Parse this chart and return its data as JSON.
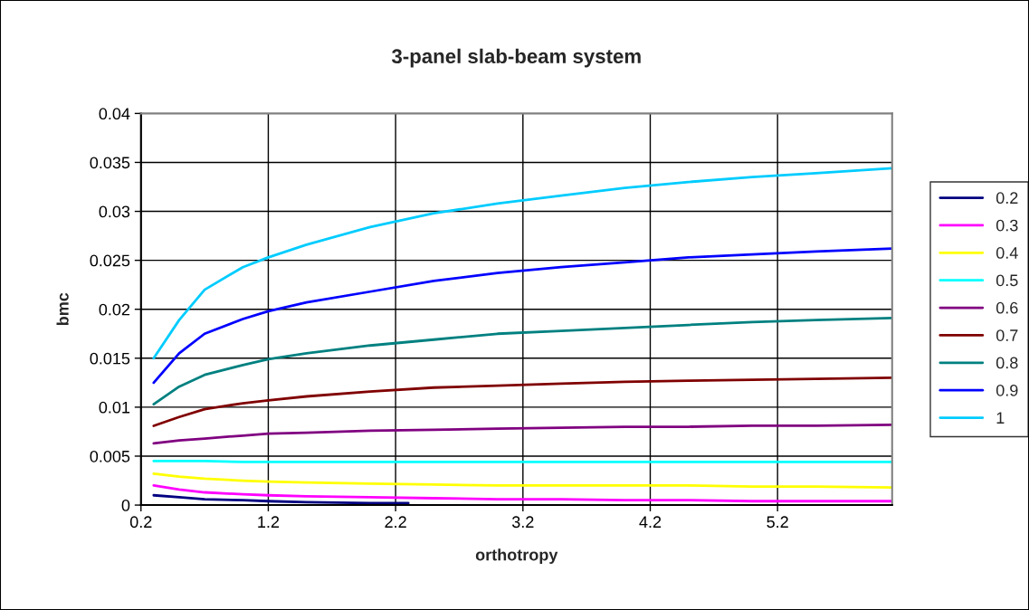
{
  "chart_data": {
    "type": "line",
    "title": "3-panel slab-beam system",
    "xlabel": "orthotropy",
    "ylabel": "bmc",
    "x": [
      0.3,
      0.5,
      0.7,
      1.0,
      1.2,
      1.5,
      2.0,
      2.5,
      3.0,
      3.5,
      4.0,
      4.5,
      5.0,
      5.5,
      6.1
    ],
    "series": [
      {
        "name": "0.2",
        "color": "#000080",
        "x": [
          0.3,
          0.5,
          0.7,
          1.0,
          1.2,
          1.5,
          2.0,
          2.3
        ],
        "values": [
          0.001,
          0.0008,
          0.0006,
          0.0005,
          0.0004,
          0.0003,
          0.0002,
          0.0002
        ]
      },
      {
        "name": "0.3",
        "color": "#ff00ff",
        "values": [
          0.002,
          0.0016,
          0.0013,
          0.0011,
          0.001,
          0.0009,
          0.0008,
          0.0007,
          0.0006,
          0.0006,
          0.0005,
          0.0005,
          0.0004,
          0.0004,
          0.0004
        ]
      },
      {
        "name": "0.4",
        "color": "#ffff00",
        "values": [
          0.0032,
          0.0029,
          0.0027,
          0.0025,
          0.0024,
          0.0023,
          0.0022,
          0.0021,
          0.002,
          0.002,
          0.002,
          0.002,
          0.0019,
          0.0019,
          0.0018
        ]
      },
      {
        "name": "0.5",
        "color": "#00ffff",
        "values": [
          0.0045,
          0.0045,
          0.0045,
          0.0044,
          0.0044,
          0.0044,
          0.0044,
          0.0044,
          0.0044,
          0.0044,
          0.0044,
          0.0044,
          0.0044,
          0.0044,
          0.0044
        ]
      },
      {
        "name": "0.6",
        "color": "#800080",
        "values": [
          0.0063,
          0.0066,
          0.0068,
          0.0071,
          0.0073,
          0.0074,
          0.0076,
          0.0077,
          0.0078,
          0.0079,
          0.008,
          0.008,
          0.0081,
          0.0081,
          0.0082
        ]
      },
      {
        "name": "0.7",
        "color": "#800000",
        "values": [
          0.0081,
          0.009,
          0.0098,
          0.0104,
          0.0107,
          0.0111,
          0.0116,
          0.012,
          0.0122,
          0.0124,
          0.0126,
          0.0127,
          0.0128,
          0.0129,
          0.013
        ]
      },
      {
        "name": "0.8",
        "color": "#008080",
        "values": [
          0.0103,
          0.0121,
          0.0133,
          0.0143,
          0.0149,
          0.0155,
          0.0163,
          0.0169,
          0.0175,
          0.0178,
          0.0181,
          0.0184,
          0.0187,
          0.0189,
          0.0191
        ]
      },
      {
        "name": "0.9",
        "color": "#0000ff",
        "values": [
          0.0125,
          0.0155,
          0.0175,
          0.019,
          0.0198,
          0.0207,
          0.0218,
          0.0229,
          0.0237,
          0.0243,
          0.0248,
          0.0253,
          0.0256,
          0.0259,
          0.0262
        ]
      },
      {
        "name": "1",
        "color": "#00ccff",
        "values": [
          0.015,
          0.0189,
          0.022,
          0.0243,
          0.0253,
          0.0266,
          0.0284,
          0.0298,
          0.0308,
          0.0316,
          0.0324,
          0.033,
          0.0335,
          0.0339,
          0.0344
        ]
      }
    ],
    "xlim": [
      0.2,
      6.1
    ],
    "xticks": [
      0.2,
      1.2,
      2.2,
      3.2,
      4.2,
      5.2
    ],
    "ylim": [
      0,
      0.04
    ],
    "yticks": [
      0,
      0.005,
      0.01,
      0.015,
      0.02,
      0.025,
      0.03,
      0.035,
      0.04
    ],
    "grid": true,
    "legend": "right",
    "marker": "none",
    "line_style": "solid"
  }
}
